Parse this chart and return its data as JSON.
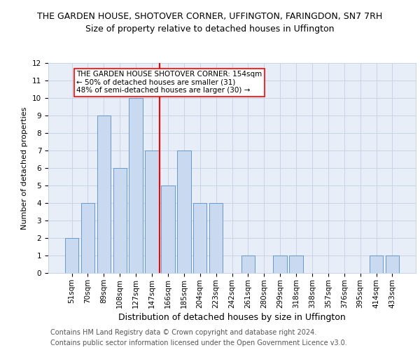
{
  "title": "THE GARDEN HOUSE, SHOTOVER CORNER, UFFINGTON, FARINGDON, SN7 7RH",
  "subtitle": "Size of property relative to detached houses in Uffington",
  "xlabel": "Distribution of detached houses by size in Uffington",
  "ylabel": "Number of detached properties",
  "categories": [
    "51sqm",
    "70sqm",
    "89sqm",
    "108sqm",
    "127sqm",
    "147sqm",
    "166sqm",
    "185sqm",
    "204sqm",
    "223sqm",
    "242sqm",
    "261sqm",
    "280sqm",
    "299sqm",
    "318sqm",
    "338sqm",
    "357sqm",
    "376sqm",
    "395sqm",
    "414sqm",
    "433sqm"
  ],
  "values": [
    2,
    4,
    9,
    6,
    10,
    7,
    5,
    7,
    4,
    4,
    0,
    1,
    0,
    1,
    1,
    0,
    0,
    0,
    0,
    1,
    1
  ],
  "bar_color": "#c9d9f0",
  "bar_edge_color": "#6699cc",
  "red_line_x": 5.5,
  "annotation_text": "THE GARDEN HOUSE SHOTOVER CORNER: 154sqm\n← 50% of detached houses are smaller (31)\n48% of semi-detached houses are larger (30) →",
  "ylim": [
    0,
    12
  ],
  "yticks": [
    0,
    1,
    2,
    3,
    4,
    5,
    6,
    7,
    8,
    9,
    10,
    11,
    12
  ],
  "footer_line1": "Contains HM Land Registry data © Crown copyright and database right 2024.",
  "footer_line2": "Contains public sector information licensed under the Open Government Licence v3.0.",
  "title_fontsize": 9,
  "subtitle_fontsize": 9,
  "xlabel_fontsize": 9,
  "ylabel_fontsize": 8,
  "tick_fontsize": 7.5,
  "annotation_fontsize": 7.5,
  "footer_fontsize": 7,
  "background_color": "#ffffff",
  "axes_bg_color": "#e8eef8",
  "grid_color": "#c8d4e8"
}
